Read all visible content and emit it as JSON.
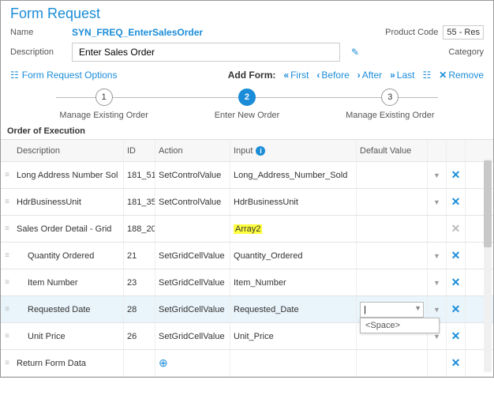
{
  "header": {
    "title": "Form Request"
  },
  "meta": {
    "name_label": "Name",
    "name_value": "SYN_FREQ_EnterSalesOrder",
    "product_code_label": "Product Code",
    "product_code_value": "55 - Res",
    "description_label": "Description",
    "description_value": "Enter Sales Order",
    "category_label": "Category"
  },
  "toolbar": {
    "options": "Form Request Options",
    "add_form_label": "Add Form:",
    "first": "First",
    "before": "Before",
    "after": "After",
    "last": "Last",
    "remove": "Remove"
  },
  "steps": {
    "s1": {
      "num": "1",
      "label": "Manage Existing Order"
    },
    "s2": {
      "num": "2",
      "label": "Enter New Order"
    },
    "s3": {
      "num": "3",
      "label": "Manage Existing Order"
    }
  },
  "section": {
    "title": "Order of Execution"
  },
  "cols": {
    "description": "Description",
    "id": "ID",
    "action": "Action",
    "input": "Input",
    "default_value": "Default Value"
  },
  "rows": [
    {
      "desc": "Long Address Number Sol",
      "id": "181_51",
      "action": "SetControlValue",
      "input": "Long_Address_Number_Sold",
      "has_dd": true,
      "x": "blue",
      "indent": false,
      "highlight": false,
      "selected": false
    },
    {
      "desc": "HdrBusinessUnit",
      "id": "181_35",
      "action": "SetControlValue",
      "input": "HdrBusinessUnit",
      "has_dd": true,
      "x": "blue",
      "indent": false,
      "highlight": false,
      "selected": false
    },
    {
      "desc": "Sales Order Detail - Grid",
      "id": "188_20",
      "action": "",
      "input": "Array2",
      "has_dd": false,
      "x": "dim",
      "indent": false,
      "highlight": true,
      "selected": false
    },
    {
      "desc": "Quantity Ordered",
      "id": "21",
      "action": "SetGridCellValue",
      "input": "Quantity_Ordered",
      "has_dd": true,
      "x": "blue",
      "indent": true,
      "highlight": false,
      "selected": false
    },
    {
      "desc": "Item Number",
      "id": "23",
      "action": "SetGridCellValue",
      "input": "Item_Number",
      "has_dd": true,
      "x": "blue",
      "indent": true,
      "highlight": false,
      "selected": false
    },
    {
      "desc": "Requested Date",
      "id": "28",
      "action": "SetGridCellValue",
      "input": "Requested_Date",
      "has_dd": true,
      "x": "blue",
      "indent": true,
      "highlight": false,
      "selected": true,
      "editing": true,
      "suggest": "<Space>"
    },
    {
      "desc": "Unit Price",
      "id": "26",
      "action": "SetGridCellValue",
      "input": "Unit_Price",
      "has_dd": true,
      "x": "blue",
      "indent": true,
      "highlight": false,
      "selected": false
    },
    {
      "desc": "Return Form Data",
      "id": "",
      "action": "",
      "input": "",
      "has_dd": false,
      "x": "blue",
      "indent": false,
      "highlight": false,
      "selected": false,
      "add": true
    }
  ]
}
